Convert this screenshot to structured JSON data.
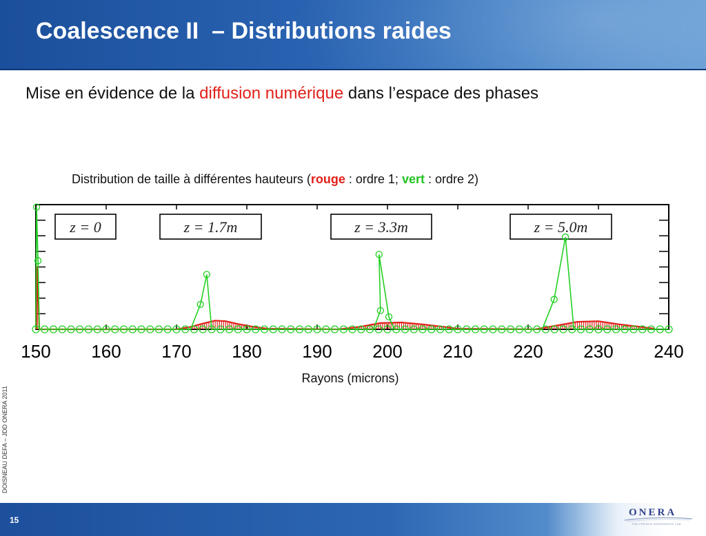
{
  "slide": {
    "title": "Coalescence II  – Distributions raides",
    "subtitle_pre": "Mise en évidence de la ",
    "subtitle_highlight": "diffusion numérique",
    "subtitle_post": " dans l’espace des phases",
    "caption_pre": "Distribution de taille à différentes hauteurs (",
    "caption_red": "rouge",
    "caption_mid": " : ordre 1; ",
    "caption_green": "vert",
    "caption_post": " : ordre 2)",
    "side_credit": "DOISNEAU DEFA – JDD ONERA 2011",
    "page_number": "15",
    "logo_text": "ONERA",
    "logo_tagline": "THE FRENCH AEROSPACE LAB"
  },
  "chart_data": {
    "type": "line",
    "xlabel": "Rayons (microns)",
    "ylabel": "",
    "xlim": [
      150,
      240
    ],
    "ticks": [
      150,
      160,
      170,
      180,
      190,
      200,
      210,
      220,
      230,
      240
    ],
    "tick_labels": [
      "150",
      "160",
      "170",
      "180",
      "190",
      "200",
      "210",
      "220",
      "230",
      "240"
    ],
    "ylim": [
      0,
      1
    ],
    "grid": false,
    "panels": [
      {
        "label": "z = 0",
        "center": 160
      },
      {
        "label": "z = 1.7m",
        "center": 185
      },
      {
        "label": "z = 3.3m",
        "center": 210
      },
      {
        "label": "z = 5.0m",
        "center": 233
      }
    ],
    "series": [
      {
        "name": "rouge",
        "color": "#e0201a",
        "marker": "bar",
        "points": [
          [
            150,
            0
          ],
          [
            150.1,
            0.5
          ],
          [
            150.2,
            0.5
          ],
          [
            150.5,
            0
          ],
          [
            170,
            0
          ],
          [
            172,
            0.02
          ],
          [
            174,
            0.05
          ],
          [
            175.5,
            0.07
          ],
          [
            177,
            0.065
          ],
          [
            179,
            0.04
          ],
          [
            181,
            0.02
          ],
          [
            183,
            0.005
          ],
          [
            193,
            0
          ],
          [
            196,
            0.02
          ],
          [
            199,
            0.05
          ],
          [
            202,
            0.055
          ],
          [
            205,
            0.04
          ],
          [
            208,
            0.02
          ],
          [
            210,
            0.005
          ],
          [
            221,
            0
          ],
          [
            224,
            0.03
          ],
          [
            227,
            0.06
          ],
          [
            230,
            0.065
          ],
          [
            233,
            0.04
          ],
          [
            236,
            0.02
          ],
          [
            238,
            0.005
          ]
        ]
      },
      {
        "name": "vert",
        "color": "#22d022",
        "marker": "circle",
        "points": [
          [
            150,
            0
          ],
          [
            150.1,
            0.98
          ],
          [
            150.3,
            0.55
          ],
          [
            150.5,
            0
          ],
          [
            172,
            0
          ],
          [
            173.4,
            0.2
          ],
          [
            174.3,
            0.44
          ],
          [
            175,
            0
          ],
          [
            198,
            0
          ],
          [
            199,
            0.15
          ],
          [
            198.8,
            0.6
          ],
          [
            200.2,
            0.1
          ],
          [
            201,
            0
          ],
          [
            222,
            0
          ],
          [
            223.7,
            0.24
          ],
          [
            225.3,
            0.74
          ],
          [
            226.5,
            0
          ],
          [
            240,
            0
          ]
        ]
      }
    ]
  }
}
